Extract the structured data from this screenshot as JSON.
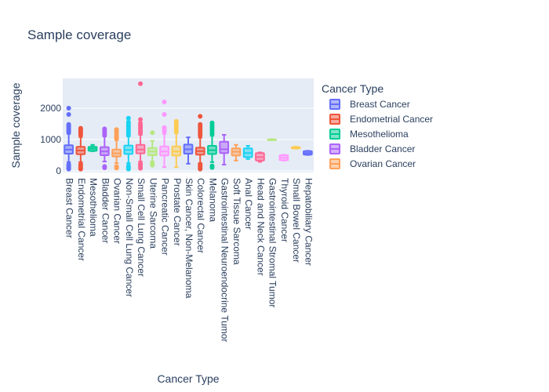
{
  "chart_data": {
    "type": "box",
    "title": "Sample coverage",
    "xlabel": "Cancer Type",
    "ylabel": "Sample coverage",
    "ylim": [
      -50,
      2950
    ],
    "yticks": [
      0,
      1000,
      2000
    ],
    "ytick_labels": [
      "0",
      "1000",
      "2000"
    ],
    "grid": true,
    "legend": {
      "title": "Cancer Type",
      "placement": "right",
      "entries": [
        "Breast Cancer",
        "Endometrial Cancer",
        "Mesothelioma",
        "Bladder Cancer",
        "Ovarian Cancer"
      ]
    },
    "series": [
      {
        "name": "Breast Cancer",
        "color": "#636efa",
        "q1": 550,
        "median": 680,
        "q3": 820,
        "lower": 280,
        "upper": 1180,
        "outliers": [
          1230,
          1280,
          1330,
          1380,
          1430,
          1480,
          1800,
          2000,
          60,
          110,
          160,
          200
        ]
      },
      {
        "name": "Endometrial Cancer",
        "color": "#EF553B",
        "q1": 530,
        "median": 650,
        "q3": 770,
        "lower": 280,
        "upper": 1080,
        "outliers": [
          1150,
          1210,
          1260,
          1320,
          1360,
          60,
          110,
          160,
          210
        ]
      },
      {
        "name": "Mesothelioma",
        "color": "#00cc96",
        "q1": 640,
        "median": 710,
        "q3": 770,
        "lower": 630,
        "upper": 830,
        "outliers": []
      },
      {
        "name": "Bladder Cancer",
        "color": "#ab63fa",
        "q1": 500,
        "median": 620,
        "q3": 760,
        "lower": 300,
        "upper": 1100,
        "outliers": [
          1150,
          1200,
          1250,
          1300,
          1340,
          100,
          140
        ]
      },
      {
        "name": "Ovarian Cancer",
        "color": "#FFA15A",
        "q1": 460,
        "median": 560,
        "q3": 680,
        "lower": 250,
        "upper": 980,
        "outliers": [
          1030,
          1080,
          1130,
          1200,
          1260,
          1320,
          90,
          140
        ]
      },
      {
        "name": "Non-Small Cell Lung Cancer",
        "color": "#19d3f3",
        "q1": 540,
        "median": 670,
        "q3": 810,
        "lower": 250,
        "upper": 1100,
        "outliers": [
          1150,
          1200,
          1260,
          1320,
          1380,
          1440,
          1500,
          1560,
          1680,
          60,
          110,
          160
        ]
      },
      {
        "name": "Small Cell Lung Cancer",
        "color": "#FF6692",
        "q1": 560,
        "median": 680,
        "q3": 830,
        "lower": 300,
        "upper": 1150,
        "outliers": [
          1210,
          1270,
          1330,
          1390,
          1450,
          1520,
          1640,
          2780,
          80,
          130,
          180,
          230
        ]
      },
      {
        "name": "Uterine Sarcoma",
        "color": "#B6E880",
        "q1": 500,
        "median": 620,
        "q3": 730,
        "lower": 300,
        "upper": 960,
        "outliers": [
          1220,
          180,
          230
        ]
      },
      {
        "name": "Pancreatic Cancer",
        "color": "#FF97FF",
        "q1": 490,
        "median": 620,
        "q3": 780,
        "lower": 120,
        "upper": 1180,
        "outliers": [
          1260,
          1320,
          1380,
          1800,
          2200
        ]
      },
      {
        "name": "Prostate Cancer",
        "color": "#FECB52",
        "q1": 490,
        "median": 620,
        "q3": 780,
        "lower": 120,
        "upper": 1200,
        "outliers": [
          1270,
          1330,
          1400,
          1460,
          1530,
          1580
        ]
      },
      {
        "name": "Skin Cancer, Non-Melanoma",
        "color": "#636efa",
        "q1": 550,
        "median": 690,
        "q3": 840,
        "lower": 230,
        "upper": 1070,
        "outliers": []
      },
      {
        "name": "Colorectal Cancer",
        "color": "#EF553B",
        "q1": 520,
        "median": 630,
        "q3": 740,
        "lower": 250,
        "upper": 1060,
        "outliers": [
          1130,
          1200,
          1270,
          1340,
          1410,
          1480,
          1740,
          60,
          110,
          160,
          210
        ]
      },
      {
        "name": "Melanoma",
        "color": "#00cc96",
        "q1": 540,
        "median": 660,
        "q3": 800,
        "lower": 280,
        "upper": 1120,
        "outliers": [
          1180,
          1250,
          1320,
          1390,
          1460,
          1530,
          110,
          160
        ]
      },
      {
        "name": "Gastrointestinal Neuroendocrine Tumor",
        "color": "#ab63fa",
        "q1": 570,
        "median": 690,
        "q3": 930,
        "lower": 200,
        "upper": 1150,
        "outliers": []
      },
      {
        "name": "Soft Tissue Sarcoma",
        "color": "#FFA15A",
        "q1": 490,
        "median": 610,
        "q3": 720,
        "lower": 330,
        "upper": 830,
        "outliers": []
      },
      {
        "name": "Anal Cancer",
        "color": "#19d3f3",
        "q1": 440,
        "median": 570,
        "q3": 720,
        "lower": 380,
        "upper": 800,
        "outliers": []
      },
      {
        "name": "Head and Neck Cancer",
        "color": "#FF6692",
        "q1": 330,
        "median": 440,
        "q3": 570,
        "lower": 290,
        "upper": 590,
        "outliers": []
      },
      {
        "name": "Gastrointestinal Stromal Tumor",
        "color": "#B6E880",
        "q1": 985,
        "median": 995,
        "q3": 1005,
        "lower": 980,
        "upper": 1010,
        "outliers": []
      },
      {
        "name": "Thyroid Cancer",
        "color": "#FF97FF",
        "q1": 340,
        "median": 420,
        "q3": 500,
        "lower": 330,
        "upper": 510,
        "outliers": []
      },
      {
        "name": "Small Bowel Cancer",
        "color": "#FECB52",
        "q1": 720,
        "median": 740,
        "q3": 760,
        "lower": 710,
        "upper": 770,
        "outliers": []
      },
      {
        "name": "Hepatobiliary Cancer",
        "color": "#636efa",
        "q1": 520,
        "median": 570,
        "q3": 630,
        "lower": 510,
        "upper": 640,
        "outliers": []
      }
    ]
  }
}
